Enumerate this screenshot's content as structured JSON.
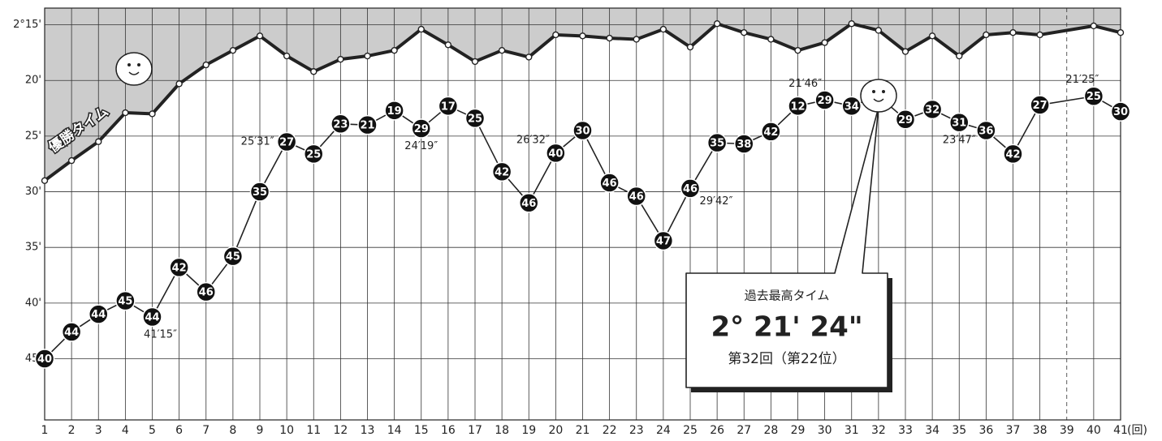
{
  "chart_data": {
    "type": "line",
    "x": [
      1,
      2,
      3,
      4,
      5,
      6,
      7,
      8,
      9,
      10,
      11,
      12,
      13,
      14,
      15,
      16,
      17,
      18,
      19,
      20,
      21,
      22,
      23,
      24,
      25,
      26,
      27,
      28,
      29,
      30,
      31,
      32,
      33,
      34,
      35,
      36,
      37,
      38,
      40,
      41
    ],
    "xlim": [
      1,
      41
    ],
    "xticks": [
      1,
      2,
      3,
      4,
      5,
      6,
      7,
      8,
      9,
      10,
      11,
      12,
      13,
      14,
      15,
      16,
      17,
      18,
      19,
      20,
      21,
      22,
      23,
      24,
      25,
      26,
      27,
      28,
      29,
      30,
      31,
      32,
      33,
      34,
      35,
      36,
      37,
      38,
      39,
      40,
      41
    ],
    "xlabel": "(回)",
    "ylim": [
      50.5,
      13.5
    ],
    "yticks": [
      {
        "value": 15,
        "label": "2°15'"
      },
      {
        "value": 20,
        "label": "20'"
      },
      {
        "value": 25,
        "label": "25'"
      },
      {
        "value": 30,
        "label": "30'"
      },
      {
        "value": 35,
        "label": "35'"
      },
      {
        "value": 40,
        "label": "40'"
      },
      {
        "value": 45,
        "label": "45'"
      }
    ],
    "grid": true,
    "dashed_x": 39,
    "series": [
      {
        "name": "優勝タイム",
        "color": "#222222",
        "fill": "#cccccc",
        "values": [
          29.0,
          27.2,
          25.5,
          22.9,
          23.0,
          20.3,
          18.6,
          17.3,
          16.0,
          17.8,
          19.2,
          18.1,
          17.8,
          17.3,
          15.4,
          16.8,
          18.3,
          17.3,
          17.9,
          15.9,
          16.0,
          16.2,
          16.3,
          15.4,
          17.0,
          14.9,
          15.7,
          16.3,
          17.3,
          16.6,
          14.9,
          15.5,
          17.4,
          16.0,
          17.8,
          15.9,
          15.7,
          15.9,
          15.1,
          15.7
        ]
      },
      {
        "color": "#222222",
        "values": [
          45.0,
          42.6,
          41.0,
          39.8,
          41.25,
          36.8,
          39.0,
          35.8,
          30.0,
          25.52,
          26.6,
          23.9,
          24.0,
          22.7,
          24.32,
          22.3,
          23.4,
          28.2,
          31.0,
          26.53,
          24.5,
          29.2,
          30.4,
          34.4,
          29.7,
          25.6,
          25.7,
          24.6,
          22.3,
          21.77,
          22.3,
          21.4,
          23.5,
          22.6,
          23.78,
          24.5,
          26.6,
          22.2,
          21.42,
          22.8
        ],
        "value_labels": [
          null,
          null,
          null,
          null,
          "41′15″",
          null,
          null,
          null,
          null,
          "25′31″",
          null,
          null,
          null,
          null,
          "24′19″",
          null,
          null,
          null,
          null,
          "26′32″",
          null,
          null,
          null,
          null,
          "29′42″",
          null,
          null,
          null,
          null,
          "21′46″",
          null,
          null,
          null,
          null,
          "23′47″",
          null,
          null,
          null,
          "21′25″",
          null
        ],
        "ranks": [
          40,
          44,
          44,
          45,
          44,
          42,
          46,
          45,
          35,
          27,
          25,
          23,
          21,
          19,
          29,
          17,
          25,
          42,
          46,
          40,
          30,
          46,
          46,
          47,
          46,
          35,
          38,
          42,
          12,
          29,
          34,
          null,
          29,
          32,
          31,
          36,
          42,
          27,
          25,
          30
        ]
      }
    ],
    "annotation": {
      "title": "過去最高タイム",
      "value": "2° 21' 24\"",
      "note": "第32回（第22位）"
    }
  }
}
